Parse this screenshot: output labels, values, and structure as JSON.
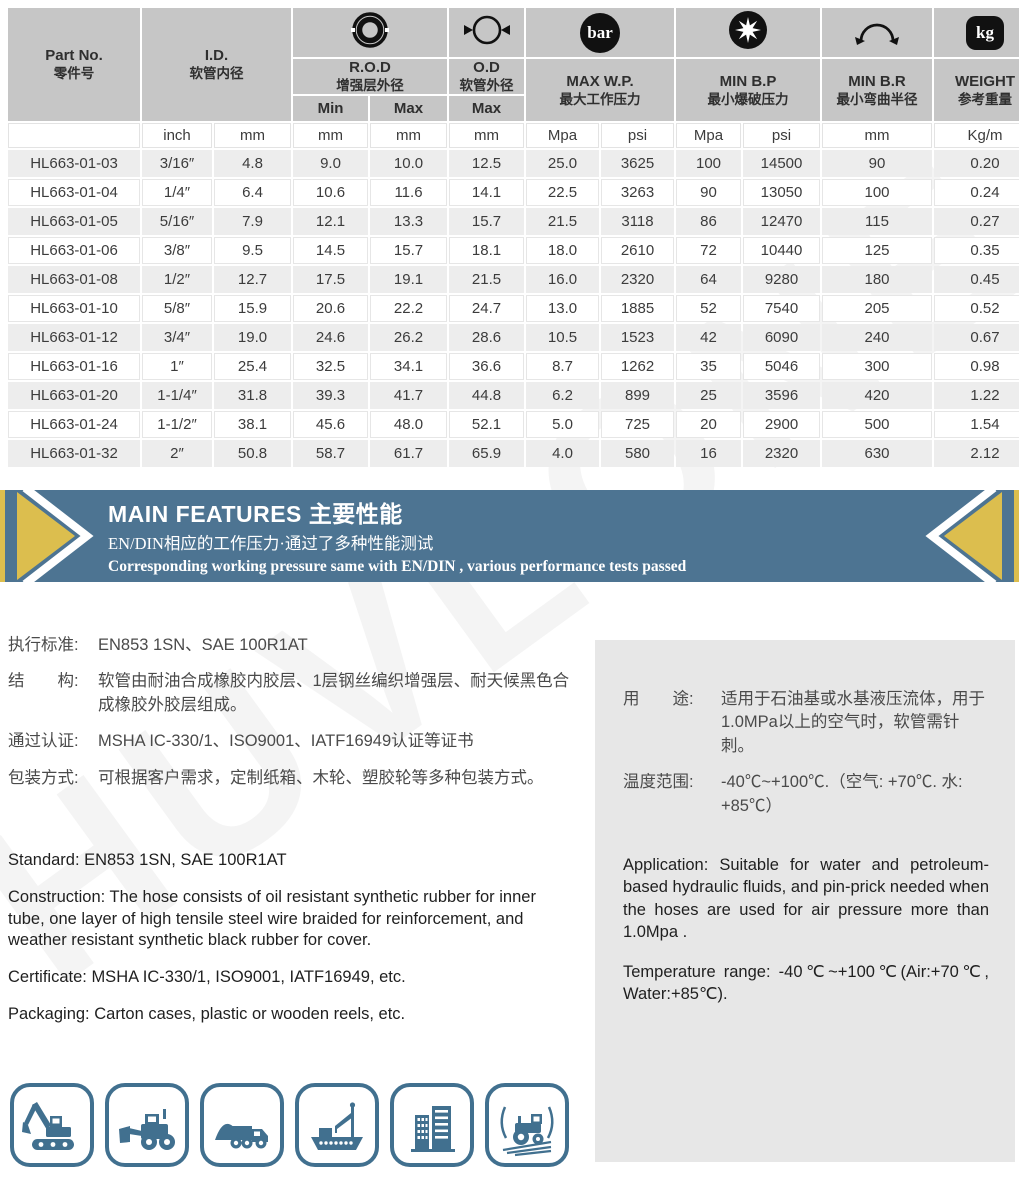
{
  "colors": {
    "header_gray": "#c6c6c6",
    "row_gray": "#ededed",
    "panel_gray": "#e7e7e7",
    "banner_blue": "#4d7492",
    "banner_yellow": "#dcbe4e",
    "icon_blue": "#41708F"
  },
  "watermark": "HUVLONE",
  "table": {
    "header": {
      "part_no": {
        "en": "Part No.",
        "cn": "零件号"
      },
      "id": {
        "en": "I.D.",
        "cn": "软管内径"
      },
      "rod": {
        "en": "R.O.D",
        "cn": "增强层外径"
      },
      "od": {
        "en": "O.D",
        "cn": "软管外径"
      },
      "max_wp": {
        "en": "MAX W.P.",
        "cn": "最大工作压力"
      },
      "min_bp": {
        "en": "MIN B.P",
        "cn": "最小爆破压力"
      },
      "min_br": {
        "en": "MIN B.R",
        "cn": "最小弯曲半径"
      },
      "weight": {
        "en": "WEIGHT",
        "cn": "参考重量"
      },
      "min_label": "Min",
      "max_label": "Max",
      "od_max_label": "Max",
      "wp_icon_text": "bar",
      "weight_icon_text": "kg",
      "icons": {
        "rod": "reinforcement-ring-icon",
        "od": "outer-diameter-icon",
        "wp": "bar-pressure-icon",
        "bp": "burst-star-icon",
        "br": "bend-radius-icon",
        "weight": "kg-weight-icon"
      }
    },
    "units": [
      "",
      "inch",
      "mm",
      "mm",
      "mm",
      "mm",
      "Mpa",
      "psi",
      "Mpa",
      "psi",
      "mm",
      "Kg/m"
    ],
    "rows": [
      [
        "HL663-01-03",
        "3/16″",
        "4.8",
        "9.0",
        "10.0",
        "12.5",
        "25.0",
        "3625",
        "100",
        "14500",
        "90",
        "0.20"
      ],
      [
        "HL663-01-04",
        "1/4″",
        "6.4",
        "10.6",
        "11.6",
        "14.1",
        "22.5",
        "3263",
        "90",
        "13050",
        "100",
        "0.24"
      ],
      [
        "HL663-01-05",
        "5/16″",
        "7.9",
        "12.1",
        "13.3",
        "15.7",
        "21.5",
        "3118",
        "86",
        "12470",
        "115",
        "0.27"
      ],
      [
        "HL663-01-06",
        "3/8″",
        "9.5",
        "14.5",
        "15.7",
        "18.1",
        "18.0",
        "2610",
        "72",
        "10440",
        "125",
        "0.35"
      ],
      [
        "HL663-01-08",
        "1/2″",
        "12.7",
        "17.5",
        "19.1",
        "21.5",
        "16.0",
        "2320",
        "64",
        "9280",
        "180",
        "0.45"
      ],
      [
        "HL663-01-10",
        "5/8″",
        "15.9",
        "20.6",
        "22.2",
        "24.7",
        "13.0",
        "1885",
        "52",
        "7540",
        "205",
        "0.52"
      ],
      [
        "HL663-01-12",
        "3/4″",
        "19.0",
        "24.6",
        "26.2",
        "28.6",
        "10.5",
        "1523",
        "42",
        "6090",
        "240",
        "0.67"
      ],
      [
        "HL663-01-16",
        "1″",
        "25.4",
        "32.5",
        "34.1",
        "36.6",
        "8.7",
        "1262",
        "35",
        "5046",
        "300",
        "0.98"
      ],
      [
        "HL663-01-20",
        "1-1/4″",
        "31.8",
        "39.3",
        "41.7",
        "44.8",
        "6.2",
        "899",
        "25",
        "3596",
        "420",
        "1.22"
      ],
      [
        "HL663-01-24",
        "1-1/2″",
        "38.1",
        "45.6",
        "48.0",
        "52.1",
        "5.0",
        "725",
        "20",
        "2900",
        "500",
        "1.54"
      ],
      [
        "HL663-01-32",
        "2″",
        "50.8",
        "58.7",
        "61.7",
        "65.9",
        "4.0",
        "580",
        "16",
        "2320",
        "630",
        "2.12"
      ]
    ]
  },
  "banner": {
    "title_en": "MAIN FEATURES",
    "title_cn": "主要性能",
    "line_cn": "EN/DIN相应的工作压力·通过了多种性能测试",
    "line_en": "Corresponding working pressure same with EN/DIN , various performance tests passed"
  },
  "specs_cn": [
    {
      "label": "执行标准:",
      "text": "EN853 1SN、SAE 100R1AT"
    },
    {
      "label": "结　　构:",
      "text": "软管由耐油合成橡胶内胶层、1层钢丝编织增强层、耐天候黑色合成橡胶外胶层组成。"
    },
    {
      "label": "通过认证:",
      "text": "MSHA IC-330/1、ISO9001、IATF16949认证等证书"
    },
    {
      "label": "包装方式:",
      "text": "可根据客户需求，定制纸箱、木轮、塑胶轮等多种包装方式。"
    }
  ],
  "specs_cn_right": [
    {
      "label": "用　　途:",
      "text": "适用于石油基或水基液压流体，用于1.0MPa以上的空气时，软管需针刺。"
    },
    {
      "label": "温度范围:",
      "text": "-40℃~+100℃.（空气: +70℃. 水: +85℃）"
    }
  ],
  "specs_en": [
    "Standard: EN853 1SN, SAE 100R1AT",
    "Construction: The hose consists of oil resistant synthetic rubber for inner tube, one layer of high tensile steel wire braided for reinforcement, and weather resistant synthetic black rubber for cover.",
    "Certificate: MSHA IC-330/1, ISO9001, IATF16949, etc.",
    "Packaging: Carton cases, plastic or wooden reels, etc."
  ],
  "specs_en_right": [
    "Application: Suitable for water and petroleum-based hydraulic fluids, and pin-prick needed when the hoses are used for air pressure more than 1.0Mpa .",
    "Temperature range: -40℃~+100℃(Air:+70℃, Water:+85℃)."
  ],
  "industry_icons": [
    "excavator-icon",
    "wheel-loader-icon",
    "dump-truck-icon",
    "cargo-ship-icon",
    "building-icon",
    "agriculture-icon"
  ]
}
